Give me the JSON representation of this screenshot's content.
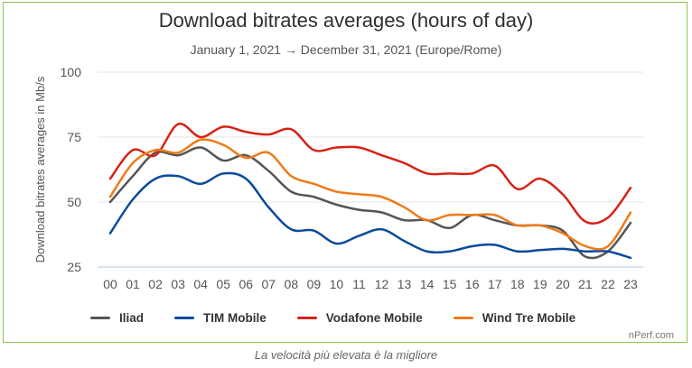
{
  "chart_data": {
    "type": "line",
    "title": "Download bitrates averages (hours of day)",
    "subtitle": "January 1, 2021 → December 31, 2021 (Europe/Rome)",
    "ylabel": "Download bitrates averages in Mb/s",
    "xlabel": "",
    "x": [
      "00",
      "01",
      "02",
      "03",
      "04",
      "05",
      "06",
      "07",
      "08",
      "09",
      "10",
      "11",
      "12",
      "13",
      "14",
      "15",
      "16",
      "17",
      "18",
      "19",
      "20",
      "21",
      "22",
      "23"
    ],
    "yticks": [
      25,
      50,
      75,
      100
    ],
    "ylim": [
      25,
      100
    ],
    "grid": "horizontal",
    "legend_position": "bottom",
    "series": [
      {
        "name": "Iliad",
        "color": "#555555",
        "values": [
          50,
          60,
          69,
          68,
          71,
          66,
          68,
          62,
          54,
          52,
          49,
          47,
          46,
          43,
          43,
          40,
          45,
          43,
          41,
          41,
          39,
          29,
          31,
          42
        ]
      },
      {
        "name": "TIM Mobile",
        "color": "#0b4a9c",
        "values": [
          38,
          51,
          59,
          60,
          57,
          61,
          59,
          48,
          39.5,
          39,
          34,
          37,
          39.5,
          35,
          31,
          31,
          33,
          33.5,
          31,
          31.5,
          32,
          31,
          31,
          28.5
        ]
      },
      {
        "name": "Vodafone Mobile",
        "color": "#d62218",
        "values": [
          59,
          70,
          68,
          80,
          75,
          79,
          77,
          76,
          78,
          70,
          71,
          71,
          68,
          65,
          61,
          61,
          61,
          64,
          55,
          59,
          53,
          42.5,
          44,
          55.5
        ]
      },
      {
        "name": "Wind Tre Mobile",
        "color": "#ee7b1a",
        "values": [
          52,
          65,
          70,
          69,
          74,
          72,
          67,
          69,
          60,
          57,
          54,
          53,
          52,
          48,
          43,
          45,
          45,
          45,
          41,
          41,
          38,
          33,
          33,
          46
        ]
      }
    ]
  },
  "credit": "nPerf.com",
  "caption": "La velocità più elevata è la migliore"
}
